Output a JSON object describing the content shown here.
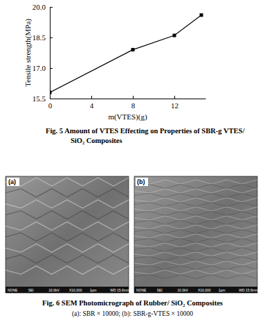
{
  "chart_data": {
    "type": "line",
    "title": "Fig. 5 Amount of VTES Effecting on Properties of SBR-g VTES/ SiO₂ Composites",
    "x_label": "m(VTES)(g)",
    "y_label": "Tensile strength(MPa)",
    "x": [
      0,
      8,
      12,
      14.6
    ],
    "values": [
      15.8,
      17.9,
      18.6,
      19.6
    ],
    "color": "#000000",
    "marker": "square",
    "xlim": [
      0,
      15
    ],
    "xticks": [
      0,
      4,
      8,
      12
    ],
    "ylim": [
      15.5,
      20
    ],
    "yticks": [
      15.5,
      {
        "value": 17,
        "label": "17.0"
      },
      18.5,
      {
        "value": 20,
        "label": "20.0"
      }
    ]
  },
  "figure": {
    "title": "Fig. 6 SEM Photomicrograph of Rubber/ SiO₂ Composites",
    "subtitle": "(a): SBR × 10000; (b): SBR-g-VTES × 10000",
    "panels": [
      {
        "label": "(a)",
        "info": [
          "NONE",
          "SEI",
          "10.0kV",
          "X10,000",
          "1μm",
          "WD 15.6mm"
        ]
      },
      {
        "label": "(b)",
        "info": [
          "NONE",
          "SEI",
          "10.0kV",
          "X10,000",
          "1μm",
          "WD 15.6mm"
        ]
      }
    ]
  }
}
